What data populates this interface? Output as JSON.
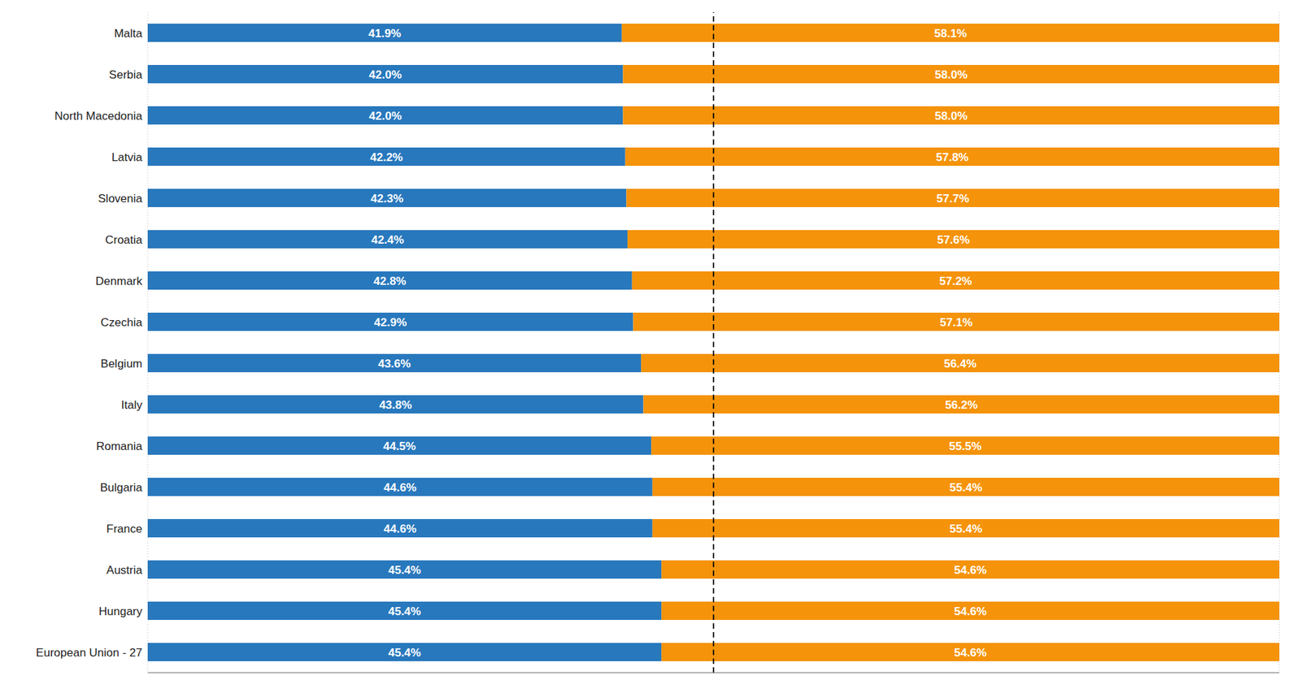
{
  "chart_data": {
    "type": "bar",
    "orientation": "horizontal",
    "stacked": true,
    "categories": [
      "Malta",
      "Serbia",
      "North Macedonia",
      "Latvia",
      "Slovenia",
      "Croatia",
      "Denmark",
      "Czechia",
      "Belgium",
      "Italy",
      "Romania",
      "Bulgaria",
      "France",
      "Austria",
      "Hungary",
      "European Union - 27"
    ],
    "series": [
      {
        "color": "#2878BD",
        "values": [
          41.9,
          42.0,
          42.0,
          42.2,
          42.3,
          42.4,
          42.8,
          42.9,
          43.6,
          43.8,
          44.5,
          44.6,
          44.6,
          45.4,
          45.4,
          45.4
        ],
        "value_labels": [
          "41.9%",
          "42.0%",
          "42.0%",
          "42.2%",
          "42.3%",
          "42.4%",
          "42.8%",
          "42.9%",
          "43.6%",
          "43.8%",
          "44.5%",
          "44.6%",
          "44.6%",
          "45.4%",
          "45.4%",
          "45.4%"
        ]
      },
      {
        "color": "#F5930A",
        "values": [
          58.1,
          58.0,
          58.0,
          57.8,
          57.7,
          57.6,
          57.2,
          57.1,
          56.4,
          56.2,
          55.5,
          55.4,
          55.4,
          54.6,
          54.6,
          54.6
        ],
        "value_labels": [
          "58.1%",
          "58.0%",
          "58.0%",
          "57.8%",
          "57.7%",
          "57.6%",
          "57.2%",
          "57.1%",
          "56.4%",
          "56.2%",
          "55.5%",
          "55.4%",
          "55.4%",
          "54.6%",
          "54.6%",
          "54.6%"
        ]
      }
    ],
    "xlim": [
      0,
      100
    ],
    "xticks": [
      10,
      20,
      30,
      40,
      50,
      60,
      70,
      80,
      90,
      100
    ],
    "grid": true,
    "data_labels": true,
    "tick_labels": "y",
    "reference_lines": [
      {
        "x": 50,
        "line_style": "dashed"
      }
    ]
  }
}
